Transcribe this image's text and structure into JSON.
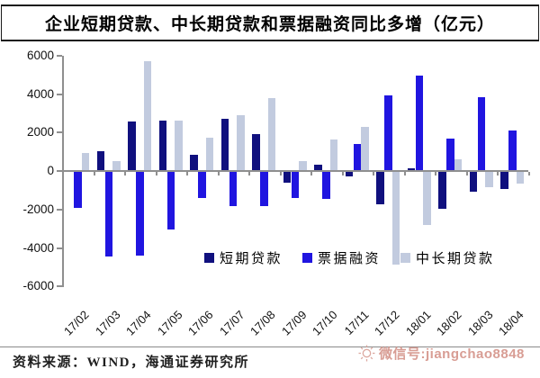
{
  "title": "企业短期贷款、中长期贷款和票据融资同比多增（亿元）",
  "chart_data": {
    "type": "bar",
    "title": "企业短期贷款、中长期贷款和票据融资同比多增（亿元）",
    "unit": "亿元",
    "categories": [
      "17/02",
      "17/03",
      "17/04",
      "17/05",
      "17/06",
      "17/07",
      "17/08",
      "17/09",
      "17/10",
      "17/11",
      "17/12",
      "18/01",
      "18/02",
      "18/03",
      "18/04"
    ],
    "series": [
      {
        "key": "short-term-loans",
        "name": "短期贷款",
        "color": "#10107e",
        "values": [
          0,
          1050,
          2550,
          2600,
          850,
          2700,
          1900,
          -550,
          350,
          -250,
          -1700,
          150,
          -1900,
          -1050,
          -900
        ]
      },
      {
        "key": "bill-financing",
        "name": "票据融资",
        "color": "#2015e0",
        "values": [
          -1850,
          -4400,
          -4350,
          -3000,
          -1350,
          -1800,
          -1800,
          -1350,
          -1400,
          1400,
          3950,
          4950,
          1700,
          3850,
          2100
        ]
      },
      {
        "key": "medium-long-term-loans",
        "name": "中长期贷款",
        "color": "#c2cbdf",
        "values": [
          950,
          500,
          5700,
          2600,
          1750,
          2900,
          3800,
          500,
          1650,
          2300,
          -4800,
          -2750,
          600,
          -800,
          -600
        ]
      }
    ],
    "ylim": [
      -6000,
      6000
    ],
    "y_ticks": [
      "6000",
      "4000",
      "2000",
      "0",
      "-2000",
      "-4000",
      "-6000"
    ],
    "grid": false,
    "legend_position": "inside-bottom",
    "axis_color": "#8f8f8f"
  },
  "footer": {
    "source_note": "资料来源：WIND，海通证券研究所",
    "watermark_text": "微信号:jiangchao8848",
    "watermark_color": "#d28c82"
  }
}
